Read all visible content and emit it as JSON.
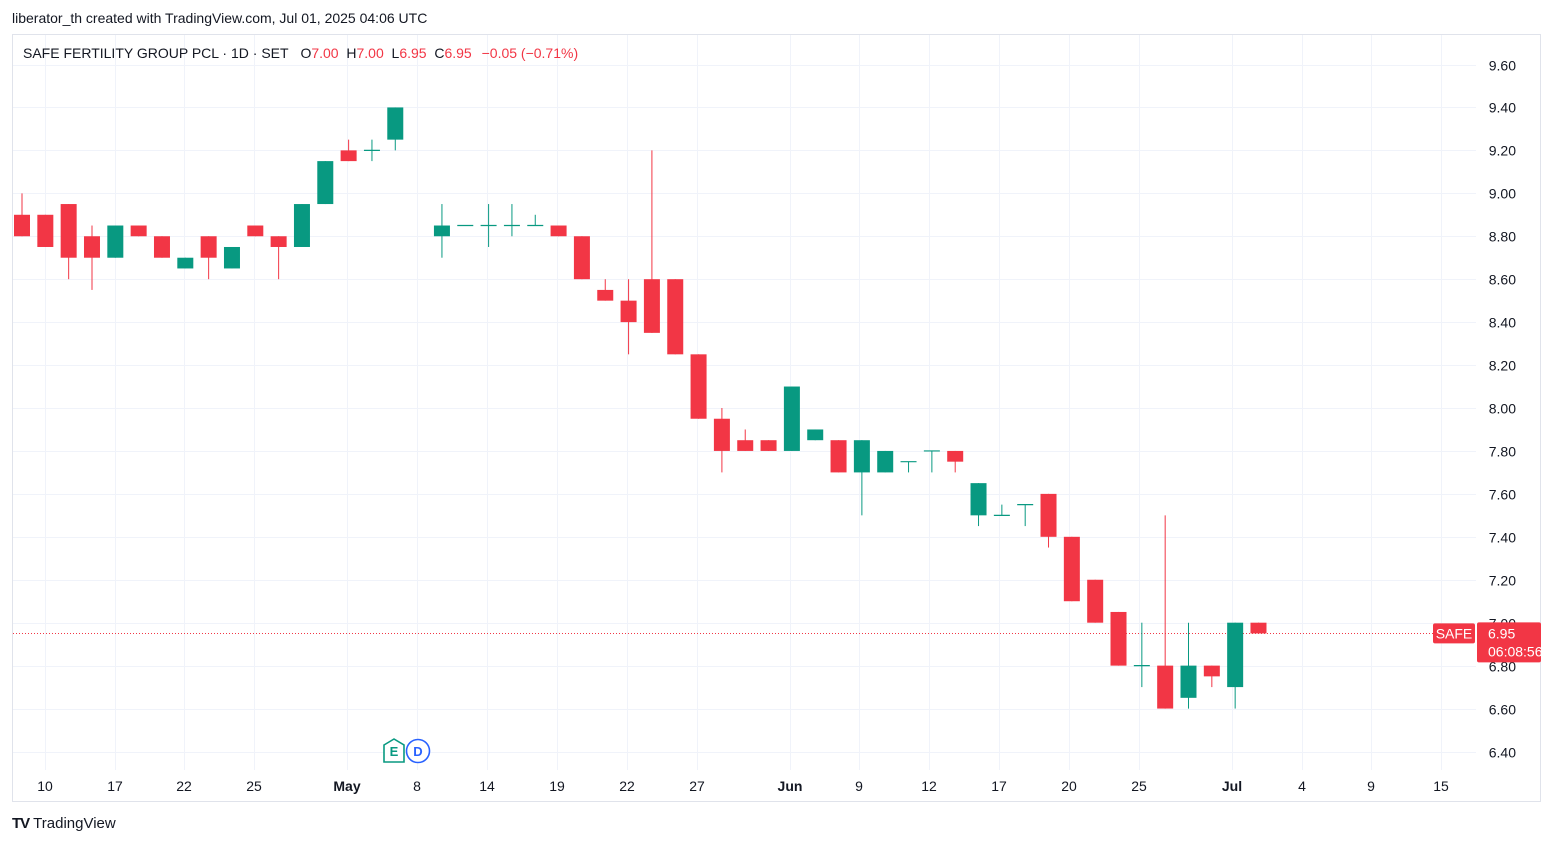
{
  "attribution": "liberator_th created with TradingView.com, Jul 01, 2025 04:06 UTC",
  "legend": {
    "symbol": "SAFE FERTILITY GROUP PCL · 1D · SET",
    "o_label": "O",
    "o_value": "7.00",
    "h_label": "H",
    "h_value": "7.00",
    "l_label": "L",
    "l_value": "6.95",
    "c_label": "C",
    "c_value": "6.95",
    "change": "−0.05 (−0.71%)"
  },
  "footer": {
    "logo": "TV",
    "brand": "TradingView"
  },
  "colors": {
    "up": "#089981",
    "down": "#f23645",
    "grid": "#f0f3fa",
    "price_line": "#f23645",
    "event_e": "#089981",
    "event_d": "#2962ff"
  },
  "price_tag": {
    "symbol": "SAFE",
    "price": "6.95",
    "countdown": "06:08:56"
  },
  "events": [
    {
      "label": "E",
      "date": "May 5"
    },
    {
      "label": "D",
      "date": "May 5"
    }
  ],
  "chart_data": {
    "type": "candlestick",
    "ylim": [
      6.32,
      9.72
    ],
    "yticks": [
      "9.60",
      "9.40",
      "9.20",
      "9.00",
      "8.80",
      "8.60",
      "8.40",
      "8.20",
      "8.00",
      "7.80",
      "7.60",
      "7.40",
      "7.20",
      "7.00",
      "6.80",
      "6.60",
      "6.40"
    ],
    "xticks": [
      {
        "label": "10",
        "bold": false
      },
      {
        "label": "17",
        "bold": false
      },
      {
        "label": "22",
        "bold": false
      },
      {
        "label": "25",
        "bold": false
      },
      {
        "label": "May",
        "bold": true
      },
      {
        "label": "8",
        "bold": false
      },
      {
        "label": "14",
        "bold": false
      },
      {
        "label": "19",
        "bold": false
      },
      {
        "label": "22",
        "bold": false
      },
      {
        "label": "27",
        "bold": false
      },
      {
        "label": "Jun",
        "bold": true
      },
      {
        "label": "9",
        "bold": false
      },
      {
        "label": "12",
        "bold": false
      },
      {
        "label": "17",
        "bold": false
      },
      {
        "label": "20",
        "bold": false
      },
      {
        "label": "25",
        "bold": false
      },
      {
        "label": "Jul",
        "bold": true
      },
      {
        "label": "4",
        "bold": false
      },
      {
        "label": "9",
        "bold": false
      },
      {
        "label": "15",
        "bold": false
      }
    ],
    "last_price": 6.95,
    "candles": [
      {
        "o": 8.9,
        "h": 9.0,
        "l": 8.8,
        "c": 8.8
      },
      {
        "o": 8.9,
        "h": 8.9,
        "l": 8.75,
        "c": 8.75
      },
      {
        "o": 8.95,
        "h": 8.95,
        "l": 8.6,
        "c": 8.7
      },
      {
        "o": 8.8,
        "h": 8.85,
        "l": 8.55,
        "c": 8.7
      },
      {
        "o": 8.7,
        "h": 8.85,
        "l": 8.7,
        "c": 8.85
      },
      {
        "o": 8.85,
        "h": 8.85,
        "l": 8.8,
        "c": 8.8
      },
      {
        "o": 8.8,
        "h": 8.8,
        "l": 8.7,
        "c": 8.7
      },
      {
        "o": 8.65,
        "h": 8.7,
        "l": 8.65,
        "c": 8.7
      },
      {
        "o": 8.8,
        "h": 8.8,
        "l": 8.6,
        "c": 8.7
      },
      {
        "o": 8.65,
        "h": 8.75,
        "l": 8.65,
        "c": 8.75
      },
      {
        "o": 8.85,
        "h": 8.85,
        "l": 8.8,
        "c": 8.8
      },
      {
        "o": 8.8,
        "h": 8.8,
        "l": 8.6,
        "c": 8.75
      },
      {
        "o": 8.75,
        "h": 8.95,
        "l": 8.75,
        "c": 8.95
      },
      {
        "o": 8.95,
        "h": 9.15,
        "l": 8.95,
        "c": 9.15
      },
      {
        "o": 9.2,
        "h": 9.25,
        "l": 9.15,
        "c": 9.15
      },
      {
        "o": 9.2,
        "h": 9.25,
        "l": 9.15,
        "c": 9.2
      },
      {
        "o": 9.25,
        "h": 9.4,
        "l": 9.2,
        "c": 9.4
      },
      null,
      {
        "o": 8.8,
        "h": 8.95,
        "l": 8.7,
        "c": 8.85
      },
      {
        "o": 8.85,
        "h": 8.85,
        "l": 8.85,
        "c": 8.85
      },
      {
        "o": 8.85,
        "h": 8.95,
        "l": 8.75,
        "c": 8.85
      },
      {
        "o": 8.85,
        "h": 8.95,
        "l": 8.8,
        "c": 8.85
      },
      {
        "o": 8.85,
        "h": 8.9,
        "l": 8.85,
        "c": 8.85
      },
      {
        "o": 8.85,
        "h": 8.85,
        "l": 8.8,
        "c": 8.8
      },
      {
        "o": 8.8,
        "h": 8.8,
        "l": 8.6,
        "c": 8.6
      },
      {
        "o": 8.55,
        "h": 8.6,
        "l": 8.5,
        "c": 8.5
      },
      {
        "o": 8.5,
        "h": 8.6,
        "l": 8.25,
        "c": 8.4
      },
      {
        "o": 8.6,
        "h": 9.2,
        "l": 8.35,
        "c": 8.35
      },
      {
        "o": 8.6,
        "h": 8.6,
        "l": 8.25,
        "c": 8.25
      },
      {
        "o": 8.25,
        "h": 8.25,
        "l": 7.95,
        "c": 7.95
      },
      {
        "o": 7.95,
        "h": 8.0,
        "l": 7.7,
        "c": 7.8
      },
      {
        "o": 7.85,
        "h": 7.9,
        "l": 7.8,
        "c": 7.8
      },
      {
        "o": 7.85,
        "h": 7.85,
        "l": 7.8,
        "c": 7.8
      },
      {
        "o": 7.8,
        "h": 8.1,
        "l": 7.8,
        "c": 8.1
      },
      {
        "o": 7.85,
        "h": 7.9,
        "l": 7.85,
        "c": 7.9
      },
      {
        "o": 7.85,
        "h": 7.85,
        "l": 7.7,
        "c": 7.7
      },
      {
        "o": 7.7,
        "h": 7.85,
        "l": 7.5,
        "c": 7.85
      },
      {
        "o": 7.7,
        "h": 7.8,
        "l": 7.7,
        "c": 7.8
      },
      {
        "o": 7.75,
        "h": 7.75,
        "l": 7.7,
        "c": 7.75
      },
      {
        "o": 7.8,
        "h": 7.8,
        "l": 7.7,
        "c": 7.8
      },
      {
        "o": 7.8,
        "h": 7.8,
        "l": 7.7,
        "c": 7.75
      },
      {
        "o": 7.5,
        "h": 7.65,
        "l": 7.45,
        "c": 7.65
      },
      {
        "o": 7.5,
        "h": 7.55,
        "l": 7.5,
        "c": 7.5
      },
      {
        "o": 7.55,
        "h": 7.55,
        "l": 7.45,
        "c": 7.55
      },
      {
        "o": 7.6,
        "h": 7.6,
        "l": 7.35,
        "c": 7.4
      },
      {
        "o": 7.4,
        "h": 7.4,
        "l": 7.1,
        "c": 7.1
      },
      {
        "o": 7.2,
        "h": 7.2,
        "l": 7.0,
        "c": 7.0
      },
      {
        "o": 7.05,
        "h": 7.05,
        "l": 6.8,
        "c": 6.8
      },
      {
        "o": 6.8,
        "h": 7.0,
        "l": 6.7,
        "c": 6.8
      },
      {
        "o": 6.8,
        "h": 7.5,
        "l": 6.6,
        "c": 6.6
      },
      {
        "o": 6.65,
        "h": 7.0,
        "l": 6.6,
        "c": 6.8
      },
      {
        "o": 6.8,
        "h": 6.8,
        "l": 6.7,
        "c": 6.75
      },
      {
        "o": 6.7,
        "h": 7.0,
        "l": 6.6,
        "c": 7.0
      },
      {
        "o": 7.0,
        "h": 7.0,
        "l": 6.95,
        "c": 6.95
      }
    ]
  }
}
